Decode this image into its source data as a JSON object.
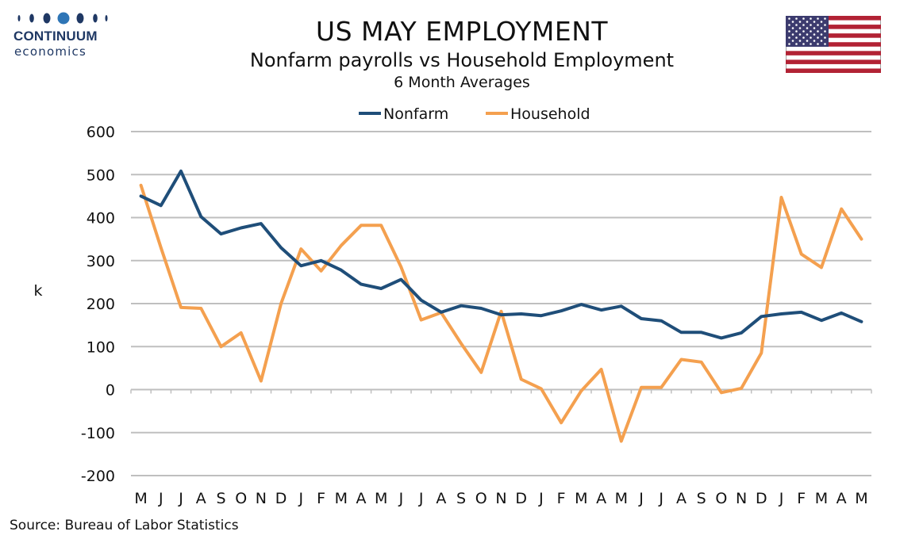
{
  "header": {
    "logo_name": "CONTINUUM",
    "logo_sub": "economics",
    "title": "US MAY EMPLOYMENT",
    "subtitle": "Nonfarm payrolls vs Household Employment",
    "subtitle2": "6 Month Averages"
  },
  "footer": {
    "source": "Source: Bureau of Labor Statistics"
  },
  "colors": {
    "nonfarm": "#1f4e79",
    "household": "#f4a04f",
    "grid": "#bfbfbf",
    "logo": "#1f3864",
    "flag_red": "#b22234",
    "flag_blue": "#3c3b6e"
  },
  "chart_data": {
    "type": "line",
    "ylabel": "k",
    "ylim": [
      -200,
      600
    ],
    "yticks": [
      600,
      500,
      400,
      300,
      200,
      100,
      0,
      -100,
      -200
    ],
    "grid": true,
    "legend_position": "top-center",
    "categories": [
      "M",
      "J",
      "J",
      "A",
      "S",
      "O",
      "N",
      "D",
      "J",
      "F",
      "M",
      "A",
      "M",
      "J",
      "J",
      "A",
      "S",
      "O",
      "N",
      "D",
      "J",
      "F",
      "M",
      "A",
      "M",
      "J",
      "J",
      "A",
      "S",
      "O",
      "N",
      "D",
      "J",
      "F",
      "M",
      "A",
      "M"
    ],
    "series": [
      {
        "name": "Nonfarm",
        "color": "#1f4e79",
        "values": [
          450,
          428,
          508,
          402,
          362,
          376,
          386,
          330,
          288,
          300,
          278,
          245,
          235,
          256,
          208,
          180,
          195,
          189,
          174,
          176,
          172,
          183,
          198,
          185,
          194,
          165,
          160,
          133,
          133,
          120,
          132,
          170,
          176,
          180,
          161,
          178,
          158
        ]
      },
      {
        "name": "Household",
        "color": "#f4a04f",
        "values": [
          475,
          330,
          191,
          189,
          100,
          132,
          20,
          200,
          327,
          276,
          335,
          382,
          382,
          285,
          162,
          179,
          107,
          40,
          182,
          24,
          2,
          -77,
          -3,
          47,
          -120,
          5,
          5,
          70,
          64,
          -7,
          3,
          85,
          447,
          315,
          284,
          420,
          350
        ]
      }
    ]
  }
}
